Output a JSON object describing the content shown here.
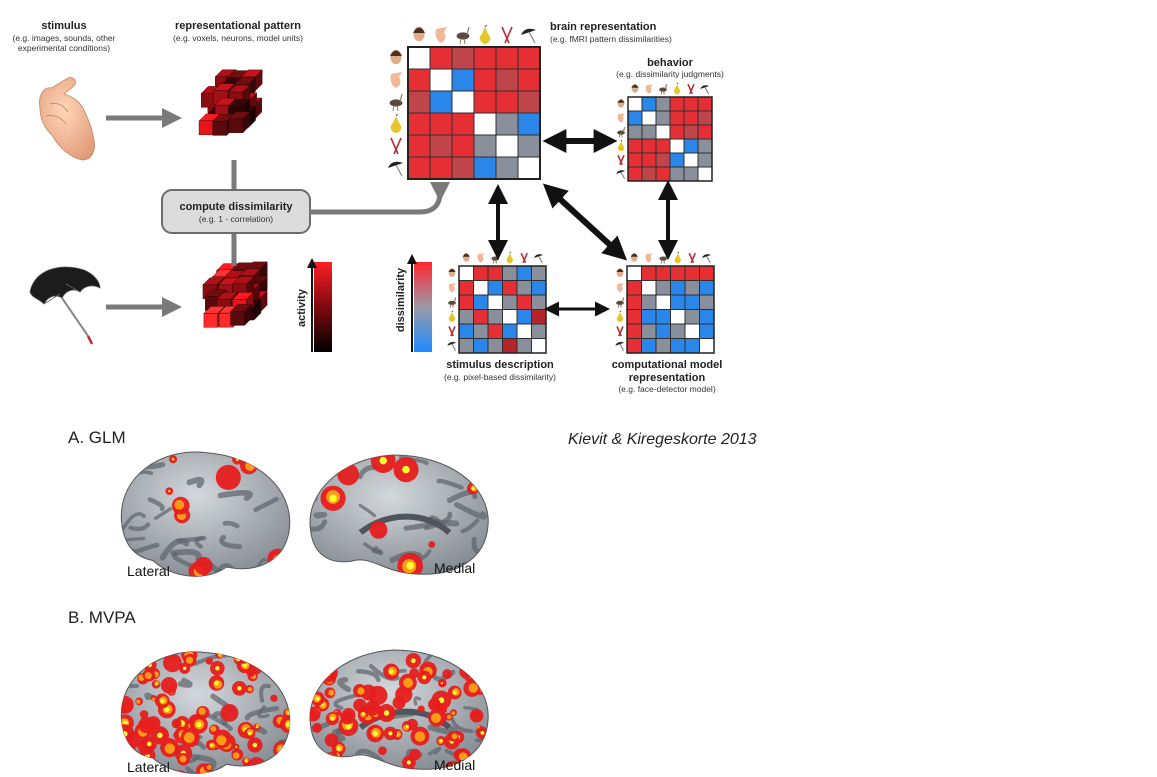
{
  "diagram": {
    "stimulus": {
      "title": "stimulus",
      "sub": [
        "(e.g. images, sounds, other",
        "experimental conditions)"
      ]
    },
    "pattern": {
      "title": "representational pattern",
      "sub": "(e.g. voxels, neurons, model units)"
    },
    "compute": {
      "title": "compute dissimilarity",
      "sub": "(e.g. 1 - correlation)"
    },
    "activity_label": "activity",
    "dissimilarity_label": "dissimilarity",
    "brain_rep": {
      "title": "brain representation",
      "sub": "(e.g. fMRI pattern dissimilarities)"
    },
    "behavior": {
      "title": "behavior",
      "sub": "(e.g. dissimilarity judgments)"
    },
    "stim_desc": {
      "title": "stimulus description",
      "sub": "(e.g. pixel-based dissimilarity)"
    },
    "comp_model": {
      "title": [
        "computational model",
        "representation"
      ],
      "sub": "(e.g. face-detector model)"
    },
    "stimulus_icons": [
      "face-icon",
      "hand-icon",
      "ostrich-icon",
      "pear-icon",
      "pliers-icon",
      "umbrella-icon"
    ],
    "matrices": {
      "brain": [
        [
          "w",
          "r",
          "m",
          "r",
          "r",
          "r"
        ],
        [
          "r",
          "w",
          "b",
          "r",
          "m",
          "r"
        ],
        [
          "m",
          "b",
          "w",
          "r",
          "r",
          "m"
        ],
        [
          "r",
          "r",
          "r",
          "w",
          "g",
          "b"
        ],
        [
          "r",
          "m",
          "r",
          "g",
          "w",
          "g"
        ],
        [
          "r",
          "r",
          "m",
          "b",
          "g",
          "w"
        ]
      ],
      "behavior": [
        [
          "w",
          "b",
          "g",
          "r",
          "r",
          "r"
        ],
        [
          "b",
          "w",
          "g",
          "r",
          "r",
          "m"
        ],
        [
          "g",
          "g",
          "w",
          "r",
          "m",
          "r"
        ],
        [
          "r",
          "r",
          "r",
          "w",
          "b",
          "g"
        ],
        [
          "r",
          "r",
          "m",
          "b",
          "w",
          "g"
        ],
        [
          "r",
          "m",
          "r",
          "g",
          "g",
          "w"
        ]
      ],
      "stimdesc": [
        [
          "w",
          "r",
          "r",
          "g",
          "b",
          "g"
        ],
        [
          "r",
          "w",
          "b",
          "r",
          "g",
          "b"
        ],
        [
          "r",
          "b",
          "w",
          "g",
          "r",
          "g"
        ],
        [
          "g",
          "r",
          "g",
          "w",
          "b",
          "d"
        ],
        [
          "b",
          "g",
          "r",
          "b",
          "w",
          "g"
        ],
        [
          "g",
          "b",
          "g",
          "d",
          "g",
          "w"
        ]
      ],
      "model": [
        [
          "w",
          "r",
          "r",
          "r",
          "r",
          "r"
        ],
        [
          "r",
          "w",
          "g",
          "b",
          "g",
          "b"
        ],
        [
          "r",
          "g",
          "w",
          "b",
          "b",
          "g"
        ],
        [
          "r",
          "b",
          "b",
          "w",
          "g",
          "b"
        ],
        [
          "r",
          "g",
          "b",
          "g",
          "w",
          "b"
        ],
        [
          "r",
          "b",
          "g",
          "b",
          "b",
          "w"
        ]
      ]
    },
    "colors": {
      "red": "#e52f35",
      "muted_red": "#c0454a",
      "blue": "#2a86e8",
      "gray": "#8a8f9c",
      "dark_red": "#b5232b",
      "white": "#ffffff"
    }
  },
  "brain_panels": {
    "glm": {
      "title": "A. GLM",
      "lateral": "Lateral",
      "medial": "Medial"
    },
    "mvpa": {
      "title": "B. MVPA",
      "lateral": "Lateral",
      "medial": "Medial"
    }
  },
  "citation": "Kievit & Kiregeskorte 2013"
}
